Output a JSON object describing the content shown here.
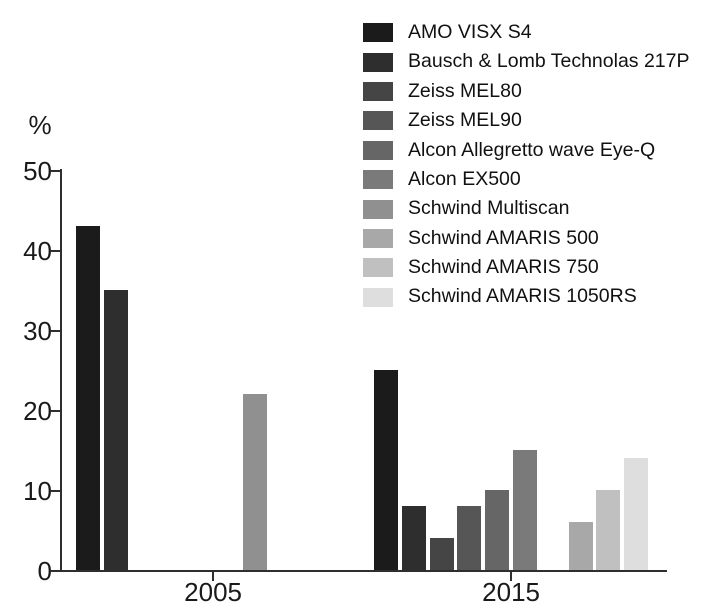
{
  "figure": {
    "background": "#ffffff"
  },
  "chart_data": {
    "type": "bar",
    "title": "",
    "xlabel": "",
    "ylabel": "%",
    "ylim": [
      0,
      50
    ],
    "yticks": [
      0,
      10,
      20,
      30,
      40,
      50
    ],
    "categories": [
      "2005",
      "2015"
    ],
    "grid": false,
    "legend_position": "top-right",
    "series": [
      {
        "name": "AMO VISX S4",
        "color": "#1b1b1b",
        "values": [
          43,
          25
        ]
      },
      {
        "name": "Bausch & Lomb Technolas 217P",
        "color": "#2e2e2e",
        "values": [
          35,
          8
        ]
      },
      {
        "name": "Zeiss MEL80",
        "color": "#454545",
        "values": [
          null,
          4
        ]
      },
      {
        "name": "Zeiss MEL90",
        "color": "#565656",
        "values": [
          null,
          8
        ]
      },
      {
        "name": "Alcon Allegretto wave Eye-Q",
        "color": "#666666",
        "values": [
          null,
          10
        ]
      },
      {
        "name": "Alcon EX500",
        "color": "#7a7a7a",
        "values": [
          null,
          15
        ]
      },
      {
        "name": "Schwind Multiscan",
        "color": "#909090",
        "values": [
          22,
          null
        ]
      },
      {
        "name": "Schwind AMARIS 500",
        "color": "#a8a8a8",
        "values": [
          null,
          6
        ]
      },
      {
        "name": "Schwind AMARIS 750",
        "color": "#c0c0c0",
        "values": [
          null,
          10
        ]
      },
      {
        "name": "Schwind AMARIS 1050RS",
        "color": "#dedede",
        "values": [
          null,
          14
        ]
      }
    ]
  }
}
